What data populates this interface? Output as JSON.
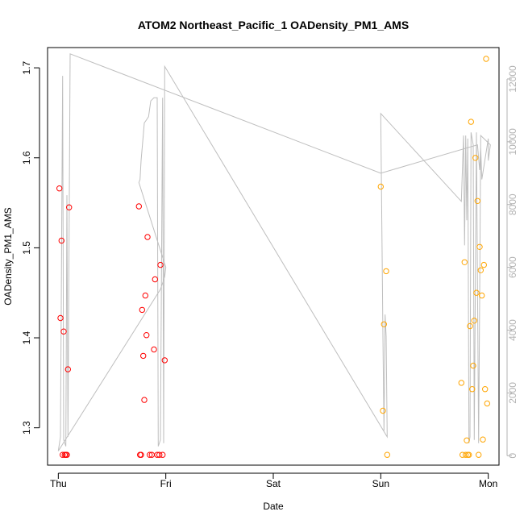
{
  "chart_data": {
    "type": "scatter",
    "title": "ATOM2 Northeast_Pacific_1 OADensity_PM1_AMS",
    "xlabel": "Date",
    "ylabel": "OADensity_PM1_AMS",
    "x_unit": "days since Thursday 00:00",
    "xlim": [
      -0.1,
      4.1
    ],
    "ylim": [
      1.2585,
      1.7225
    ],
    "x_ticks": [
      {
        "value": 0,
        "label": "Thu"
      },
      {
        "value": 1,
        "label": "Fri"
      },
      {
        "value": 2,
        "label": "Sat"
      },
      {
        "value": 3,
        "label": "Sun"
      },
      {
        "value": 4,
        "label": "Mon"
      }
    ],
    "y_ticks": [
      {
        "value": 1.3,
        "label": "1.3"
      },
      {
        "value": 1.4,
        "label": "1.4"
      },
      {
        "value": 1.5,
        "label": "1.5"
      },
      {
        "value": 1.6,
        "label": "1.6"
      },
      {
        "value": 1.7,
        "label": "1.7"
      }
    ],
    "y2lim": [
      -300,
      13000
    ],
    "y2_ticks": [
      {
        "value": 0,
        "label": "0"
      },
      {
        "value": 2000,
        "label": "2000"
      },
      {
        "value": 4000,
        "label": "4000"
      },
      {
        "value": 6000,
        "label": "6000"
      },
      {
        "value": 8000,
        "label": "8000"
      },
      {
        "value": 10000,
        "label": "10000"
      },
      {
        "value": 12000,
        "label": "12000"
      }
    ],
    "grid": false,
    "series": [
      {
        "color": "#ff0000",
        "marker": "open-circle",
        "points": [
          [
            0.01,
            1.566
          ],
          [
            0.02,
            1.422
          ],
          [
            0.03,
            1.508
          ],
          [
            0.04,
            1.27
          ],
          [
            0.05,
            1.407
          ],
          [
            0.06,
            1.27
          ],
          [
            0.07,
            1.27
          ],
          [
            0.08,
            1.27
          ],
          [
            0.09,
            1.365
          ],
          [
            0.1,
            1.545
          ],
          [
            0.75,
            1.546
          ],
          [
            0.76,
            1.27
          ],
          [
            0.77,
            1.27
          ],
          [
            0.78,
            1.431
          ],
          [
            0.79,
            1.38
          ],
          [
            0.8,
            1.331
          ],
          [
            0.81,
            1.447
          ],
          [
            0.82,
            1.403
          ],
          [
            0.83,
            1.512
          ],
          [
            0.85,
            1.27
          ],
          [
            0.87,
            1.27
          ],
          [
            0.89,
            1.387
          ],
          [
            0.9,
            1.465
          ],
          [
            0.92,
            1.27
          ],
          [
            0.94,
            1.27
          ],
          [
            0.95,
            1.481
          ],
          [
            0.97,
            1.27
          ],
          [
            0.99,
            1.375
          ]
        ]
      },
      {
        "color": "#ffa500",
        "marker": "open-circle",
        "points": [
          [
            3.0,
            1.568
          ],
          [
            3.02,
            1.319
          ],
          [
            3.03,
            1.415
          ],
          [
            3.05,
            1.474
          ],
          [
            3.06,
            1.27
          ],
          [
            3.75,
            1.35
          ],
          [
            3.76,
            1.27
          ],
          [
            3.78,
            1.484
          ],
          [
            3.79,
            1.27
          ],
          [
            3.8,
            1.286
          ],
          [
            3.81,
            1.27
          ],
          [
            3.82,
            1.27
          ],
          [
            3.83,
            1.413
          ],
          [
            3.84,
            1.64
          ],
          [
            3.85,
            1.343
          ],
          [
            3.86,
            1.369
          ],
          [
            3.87,
            1.419
          ],
          [
            3.88,
            1.6
          ],
          [
            3.89,
            1.45
          ],
          [
            3.9,
            1.552
          ],
          [
            3.91,
            1.27
          ],
          [
            3.92,
            1.501
          ],
          [
            3.93,
            1.475
          ],
          [
            3.94,
            1.447
          ],
          [
            3.95,
            1.287
          ],
          [
            3.96,
            1.481
          ],
          [
            3.97,
            1.343
          ],
          [
            3.98,
            1.71
          ],
          [
            3.99,
            1.327
          ]
        ]
      }
    ],
    "secondary_line": {
      "color": "#bebebe",
      "axis": "right",
      "points": [
        [
          0.0,
          150
        ],
        [
          0.02,
          600
        ],
        [
          0.04,
          12100
        ],
        [
          0.05,
          500
        ],
        [
          0.07,
          300
        ],
        [
          0.08,
          8300
        ],
        [
          0.09,
          600
        ],
        [
          0.11,
          12800
        ],
        [
          3.0,
          9000
        ],
        [
          3.9,
          9900
        ],
        [
          3.92,
          9100
        ],
        [
          3.93,
          9800
        ],
        [
          3.94,
          8800
        ],
        [
          4.0,
          10100
        ],
        [
          4.0,
          9400
        ],
        [
          4.02,
          9900
        ],
        [
          3.93,
          10200
        ],
        [
          3.92,
          5000
        ],
        [
          3.91,
          400
        ],
        [
          3.89,
          10300
        ],
        [
          3.87,
          500
        ],
        [
          3.86,
          9900
        ],
        [
          3.84,
          10300
        ],
        [
          3.83,
          600
        ],
        [
          3.82,
          400
        ],
        [
          3.81,
          10100
        ],
        [
          3.8,
          7500
        ],
        [
          3.79,
          10200
        ],
        [
          3.78,
          6700
        ],
        [
          3.77,
          10200
        ],
        [
          3.75,
          8100
        ],
        [
          3.0,
          10900
        ],
        [
          3.02,
          3800
        ],
        [
          3.03,
          800
        ],
        [
          3.04,
          4500
        ],
        [
          3.05,
          3800
        ],
        [
          3.06,
          600
        ],
        [
          0.99,
          12400
        ],
        [
          0.98,
          400
        ],
        [
          0.97,
          11400
        ],
        [
          0.95,
          500
        ],
        [
          0.93,
          300
        ],
        [
          0.92,
          11400
        ],
        [
          0.9,
          11400
        ],
        [
          0.89,
          11400
        ],
        [
          0.86,
          11300
        ],
        [
          0.84,
          10800
        ],
        [
          0.82,
          10700
        ],
        [
          0.8,
          10600
        ],
        [
          0.79,
          10200
        ],
        [
          0.77,
          9400
        ],
        [
          0.76,
          8800
        ],
        [
          0.75,
          8700
        ],
        [
          1.0,
          6000
        ],
        [
          0.99,
          5700
        ],
        [
          0.97,
          5500
        ],
        [
          0.95,
          5300
        ],
        [
          0.0,
          150
        ]
      ]
    }
  }
}
